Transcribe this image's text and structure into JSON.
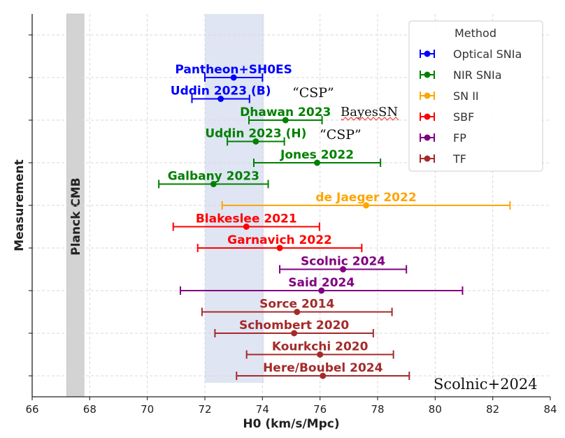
{
  "chart_data": {
    "type": "errorbar",
    "xlabel": "H0 (km/s/Mpc)",
    "ylabel": "Measurement",
    "xlim": [
      66,
      84
    ],
    "xticks": [
      66,
      68,
      70,
      72,
      74,
      76,
      78,
      80,
      82,
      84
    ],
    "grid": true,
    "legend": {
      "title": "Method",
      "placement": "top-right"
    },
    "methods": [
      {
        "name": "Optical SNIa",
        "color": "#0000ff"
      },
      {
        "name": "NIR SNIa",
        "color": "#008000"
      },
      {
        "name": "SN II",
        "color": "#ffa500"
      },
      {
        "name": "SBF",
        "color": "#ff0000"
      },
      {
        "name": "FP",
        "color": "#800080"
      },
      {
        "name": "TF",
        "color": "#a52a2a"
      }
    ],
    "points": [
      {
        "label": "Pantheon+SH0ES",
        "method": "Optical SNIa",
        "value": 73.0,
        "low": 72.0,
        "high": 74.0
      },
      {
        "label": "Uddin 2023 (B)",
        "method": "Optical SNIa",
        "value": 72.55,
        "low": 71.55,
        "high": 73.55
      },
      {
        "label": "Dhawan 2023",
        "method": "NIR SNIa",
        "value": 74.8,
        "low": 73.53,
        "high": 76.07
      },
      {
        "label": "Uddin 2023 (H)",
        "method": "NIR SNIa",
        "value": 73.77,
        "low": 72.78,
        "high": 74.76
      },
      {
        "label": "Jones 2022",
        "method": "NIR SNIa",
        "value": 75.9,
        "low": 73.7,
        "high": 78.1
      },
      {
        "label": "Galbany 2023",
        "method": "NIR SNIa",
        "value": 72.3,
        "low": 70.4,
        "high": 74.2
      },
      {
        "label": "de Jaeger 2022",
        "method": "SN II",
        "value": 77.6,
        "low": 72.6,
        "high": 82.6
      },
      {
        "label": "Blakeslee 2021",
        "method": "SBF",
        "value": 73.44,
        "low": 70.9,
        "high": 75.98
      },
      {
        "label": "Garnavich 2022",
        "method": "SBF",
        "value": 74.6,
        "low": 71.75,
        "high": 77.45
      },
      {
        "label": "Scolnic 2024",
        "method": "FP",
        "value": 76.8,
        "low": 74.6,
        "high": 79.0
      },
      {
        "label": "Said 2024",
        "method": "FP",
        "value": 76.05,
        "low": 71.15,
        "high": 80.95
      },
      {
        "label": "Sorce 2014",
        "method": "TF",
        "value": 75.2,
        "low": 71.9,
        "high": 78.5
      },
      {
        "label": "Schombert 2020",
        "method": "TF",
        "value": 75.1,
        "low": 72.35,
        "high": 77.85
      },
      {
        "label": "Kourkchi 2020",
        "method": "TF",
        "value": 76.0,
        "low": 73.45,
        "high": 78.55
      },
      {
        "label": "Here/Boubel 2024",
        "method": "TF",
        "value": 76.1,
        "low": 73.1,
        "high": 79.1
      }
    ],
    "bands": [
      {
        "label": "Planck CMB",
        "from": 67.2,
        "to": 67.8,
        "color": "#d3d3d3"
      },
      {
        "label": "",
        "from": 72.0,
        "to": 74.05,
        "color": "#dfe5f3"
      }
    ],
    "annotations": [
      {
        "text": "“CSP”",
        "near": "Uddin 2023 (B)"
      },
      {
        "text": "BayesSN",
        "near": "Dhawan 2023"
      },
      {
        "text": "“CSP”",
        "near": "Uddin 2023 (H)"
      },
      {
        "text": "Scolnic+2024",
        "near": "bottom-right"
      }
    ]
  }
}
